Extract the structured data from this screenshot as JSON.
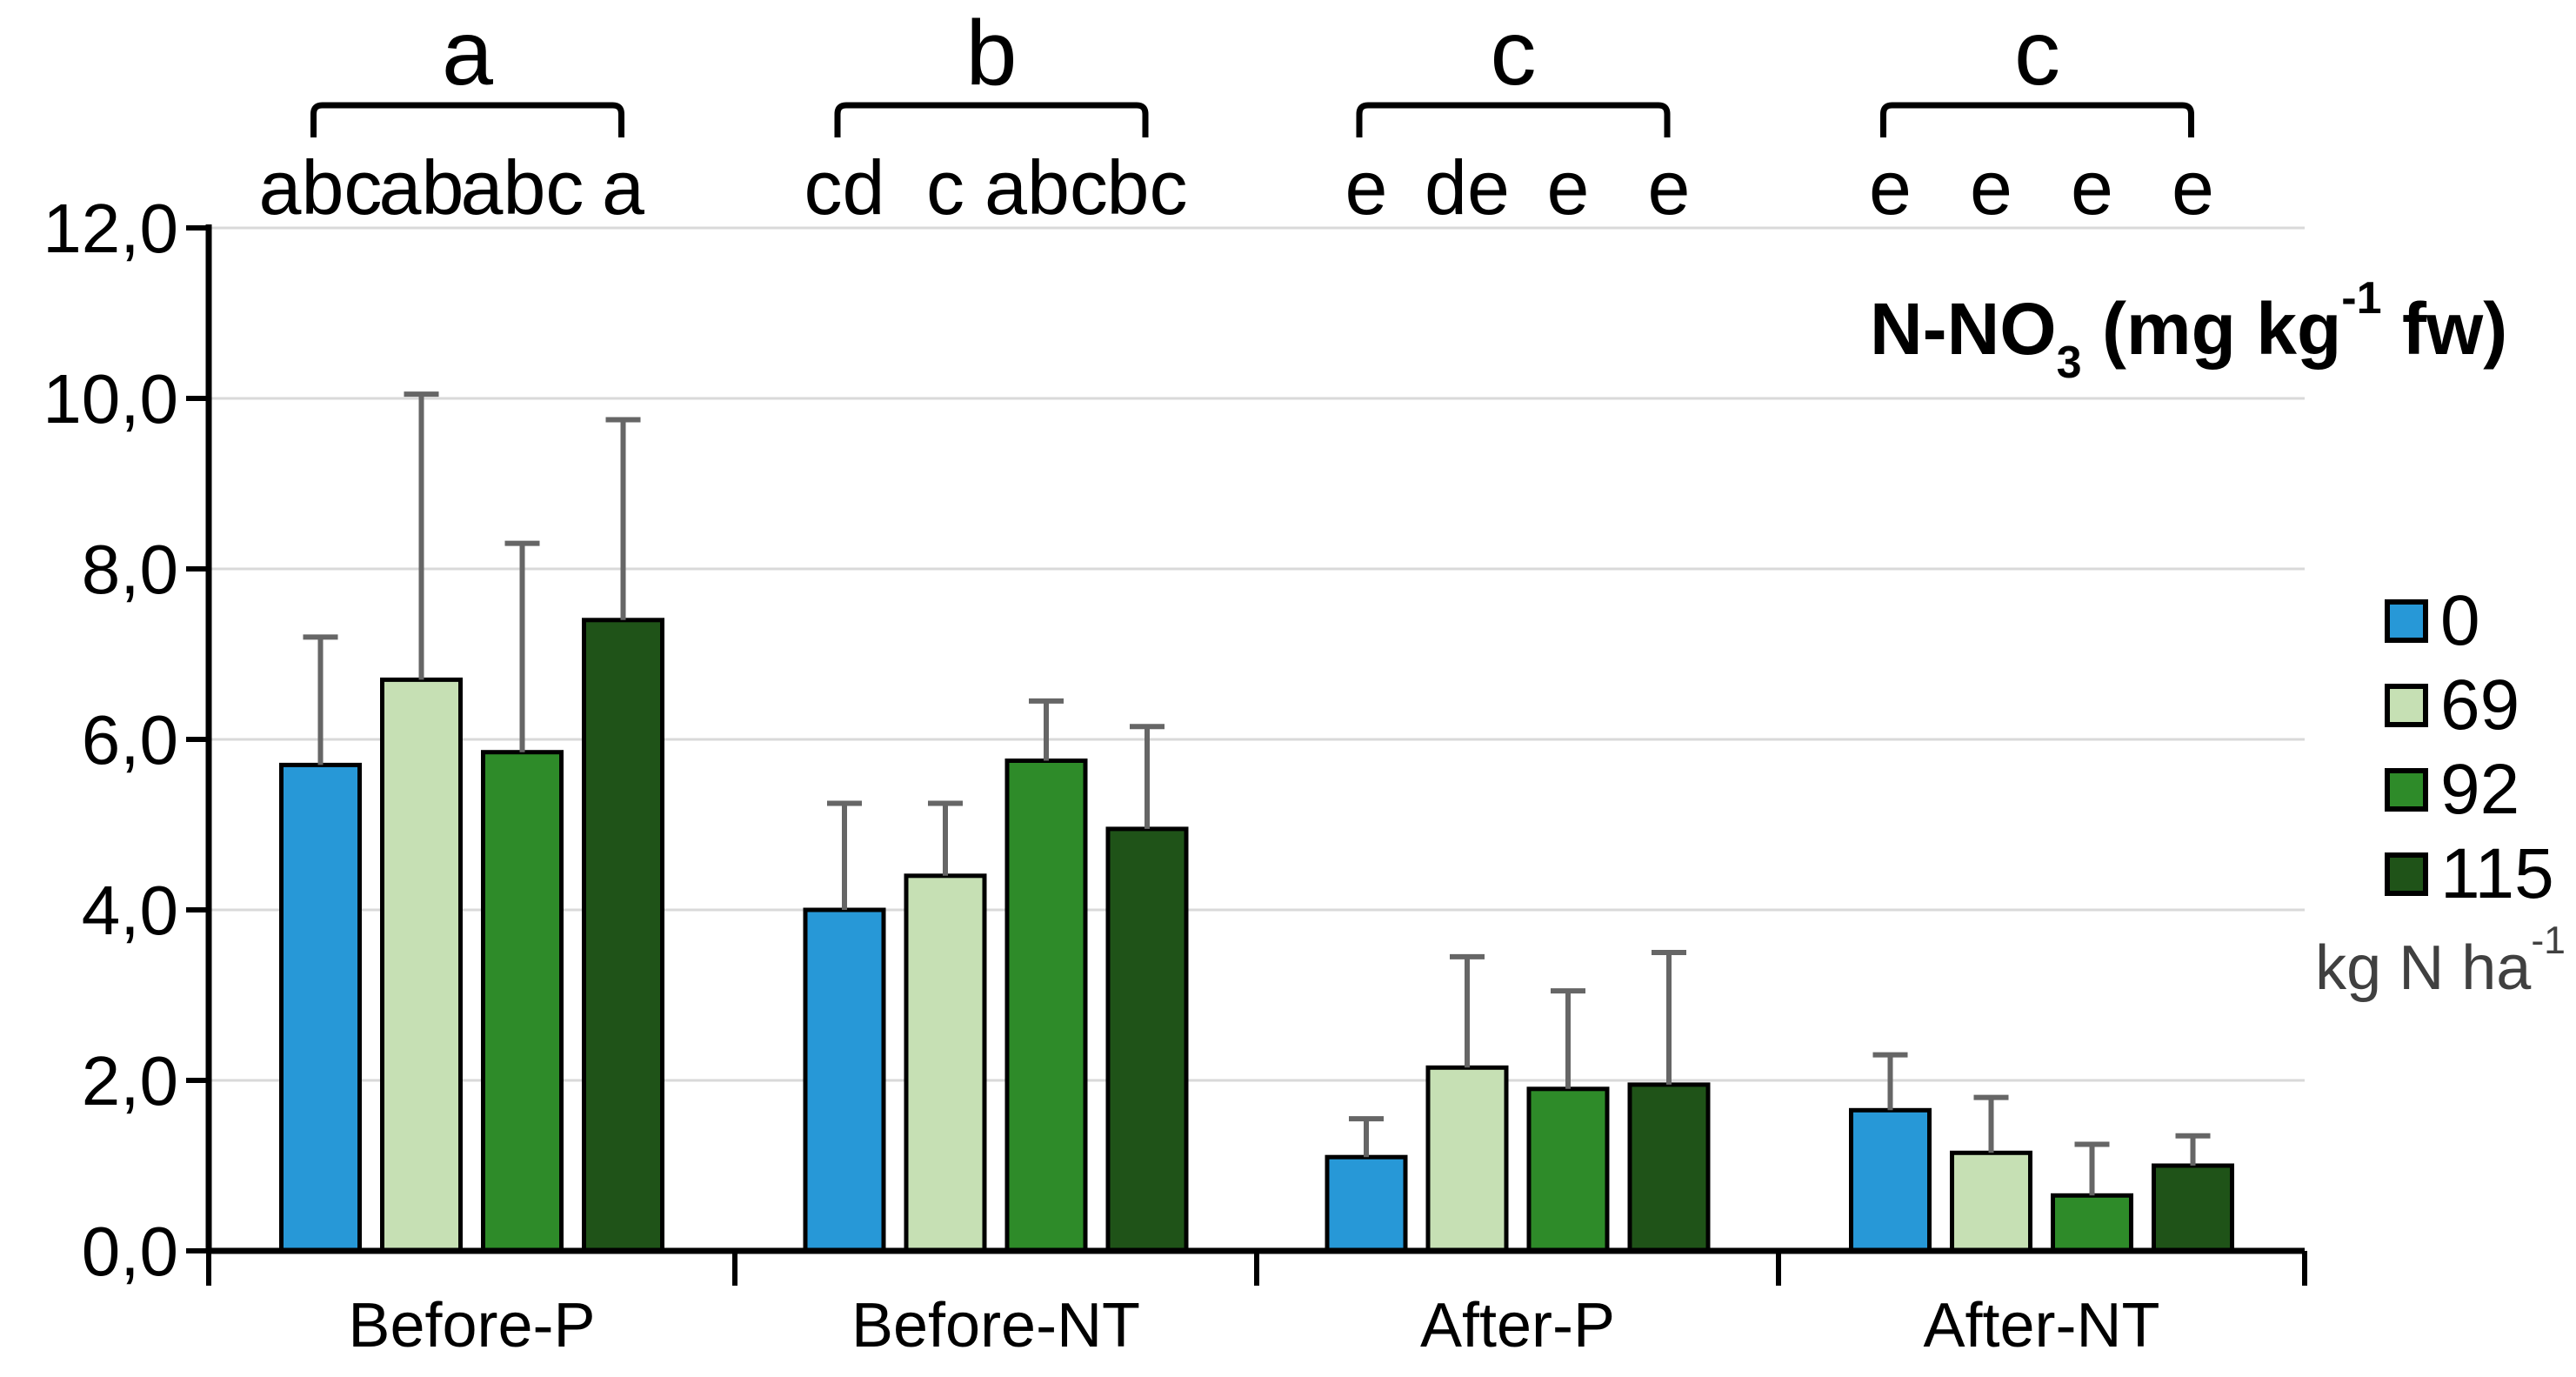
{
  "chart_data": {
    "type": "bar",
    "title_plain": "N-NO3 (mg kg-1 fw)",
    "title_parts": {
      "p1": "N-NO",
      "sub": "3",
      "p2": " (mg kg",
      "sup": "-1",
      "p3": " fw)"
    },
    "categories": [
      "Before-P",
      "Before-NT",
      "After-P",
      "After-NT"
    ],
    "series": [
      {
        "name": "0",
        "color": "#2798D7",
        "values": [
          5.7,
          4.0,
          1.1,
          1.65
        ],
        "errors_plus": [
          1.5,
          1.25,
          0.45,
          0.65
        ],
        "sig_letters": [
          "abc",
          "cd",
          "e",
          "e"
        ]
      },
      {
        "name": "69",
        "color": "#C6E0B4",
        "values": [
          6.7,
          4.4,
          2.15,
          1.15
        ],
        "errors_plus": [
          3.35,
          0.85,
          1.3,
          0.65
        ],
        "sig_letters": [
          "ab",
          "c",
          "de",
          "e"
        ]
      },
      {
        "name": "92",
        "color": "#2E8B29",
        "values": [
          5.85,
          5.75,
          1.9,
          0.65
        ],
        "errors_plus": [
          2.45,
          0.7,
          1.15,
          0.6
        ],
        "sig_letters": [
          "abc",
          "abc",
          "e",
          "e"
        ]
      },
      {
        "name": "115",
        "color": "#1F5318",
        "values": [
          7.4,
          4.95,
          1.95,
          1.0
        ],
        "errors_plus": [
          2.35,
          1.2,
          1.55,
          0.35
        ],
        "sig_letters": [
          "a",
          "bc",
          "e",
          "e"
        ]
      }
    ],
    "group_letters": [
      "a",
      "b",
      "c",
      "c"
    ],
    "y_tick_labels": [
      "0,0",
      "2,0",
      "4,0",
      "6,0",
      "8,0",
      "10,0",
      "12,0"
    ],
    "ylim": [
      0,
      12
    ],
    "y_tick_step": 2,
    "grid": true,
    "legend_position": "right",
    "colors": {
      "axis": "#000000",
      "gridline": "#D9D9D9",
      "error_bar": "#666666",
      "bar_outline": "#000000",
      "unit_text": "#404040"
    }
  },
  "legend": {
    "items": [
      {
        "label": "0",
        "color": "#2798D7"
      },
      {
        "label": "69",
        "color": "#C6E0B4"
      },
      {
        "label": "92",
        "color": "#2E8B29"
      },
      {
        "label": "115",
        "color": "#1F5318"
      }
    ],
    "unit_parts": {
      "p1": "kg N ha",
      "sup": "-1"
    }
  }
}
